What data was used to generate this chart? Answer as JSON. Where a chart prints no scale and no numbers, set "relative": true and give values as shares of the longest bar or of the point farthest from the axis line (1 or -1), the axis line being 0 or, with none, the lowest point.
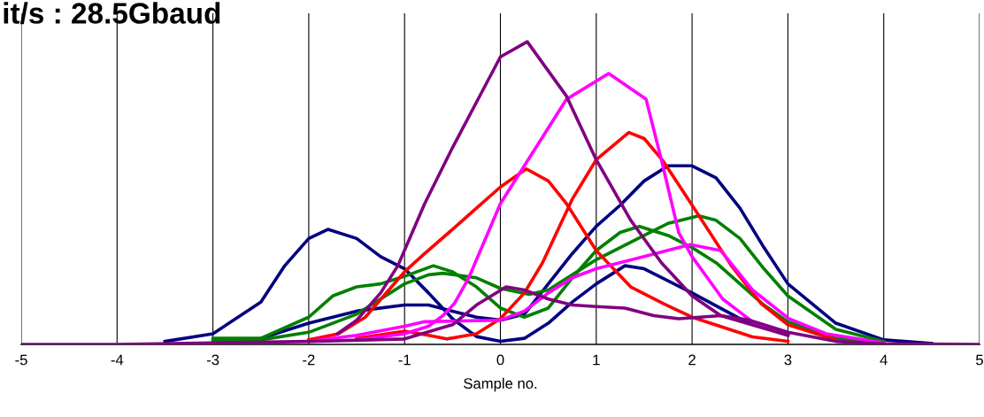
{
  "chart_data": {
    "type": "line",
    "title": "it/s : 28.5Gbaud",
    "xlabel": "Sample no.",
    "relative": true,
    "xlim": [
      -5,
      5
    ],
    "xticks": [
      -5,
      -4,
      -3,
      -2,
      -1,
      0,
      1,
      2,
      3,
      4,
      5
    ],
    "grid": "x",
    "marker": "none",
    "line_style": "solid",
    "series": [
      {
        "color": "#000080",
        "x": [
          -3.5,
          -3,
          -2.5,
          -2.25,
          -2,
          -1.8,
          -1.5,
          -1.25,
          -1,
          -0.75,
          -0.5,
          -0.25,
          0,
          0.25,
          0.5,
          0.75,
          1,
          1.3,
          1.5,
          2,
          2.5,
          3
        ],
        "values": [
          0.01,
          0.035,
          0.14,
          0.26,
          0.35,
          0.38,
          0.35,
          0.29,
          0.25,
          0.17,
          0.085,
          0.026,
          0.01,
          0.02,
          0.07,
          0.14,
          0.2,
          0.26,
          0.25,
          0.17,
          0.085,
          0.03
        ]
      },
      {
        "color": "#000080",
        "x": [
          -2.5,
          -2,
          -1.5,
          -1,
          -0.75,
          -0.5,
          -0.25,
          0,
          0.25,
          0.5,
          0.75,
          1,
          1.25,
          1.5,
          1.75,
          2,
          2.25,
          2.5,
          2.75,
          3,
          3.5,
          4,
          4.5
        ],
        "values": [
          0.02,
          0.07,
          0.11,
          0.13,
          0.13,
          0.11,
          0.09,
          0.08,
          0.1,
          0.2,
          0.3,
          0.39,
          0.46,
          0.54,
          0.59,
          0.59,
          0.55,
          0.45,
          0.32,
          0.2,
          0.07,
          0.015,
          0.003
        ]
      },
      {
        "color": "#008000",
        "x": [
          -3,
          -2.5,
          -2,
          -1.75,
          -1.5,
          -1.25,
          -1,
          -0.7,
          -0.5,
          -0.25,
          0,
          0.25,
          0.5,
          0.75,
          1,
          1.25,
          1.45,
          1.75,
          2,
          2.25,
          2.5,
          2.75,
          3,
          3.5,
          4
        ],
        "values": [
          0.02,
          0.02,
          0.09,
          0.16,
          0.19,
          0.2,
          0.225,
          0.26,
          0.24,
          0.19,
          0.12,
          0.09,
          0.12,
          0.22,
          0.31,
          0.37,
          0.39,
          0.36,
          0.32,
          0.27,
          0.2,
          0.13,
          0.075,
          0.02,
          0.005
        ]
      },
      {
        "color": "#008000",
        "x": [
          -3,
          -2.5,
          -2,
          -1.5,
          -1.25,
          -1,
          -0.75,
          -0.6,
          -0.25,
          0,
          0.3,
          0.5,
          0.75,
          1,
          1.25,
          1.5,
          1.75,
          2.07,
          2.25,
          2.5,
          2.75,
          3,
          3.5,
          4
        ],
        "values": [
          0.01,
          0.015,
          0.04,
          0.1,
          0.15,
          0.2,
          0.23,
          0.235,
          0.22,
          0.185,
          0.165,
          0.18,
          0.23,
          0.28,
          0.32,
          0.36,
          0.4,
          0.425,
          0.41,
          0.35,
          0.25,
          0.16,
          0.05,
          0.01
        ]
      },
      {
        "color": "#ff0000",
        "x": [
          -2,
          -1.69,
          -1.41,
          -1,
          -0.79,
          -0.5,
          -0.25,
          0,
          0.27,
          0.5,
          0.69,
          1,
          1.36,
          1.7,
          2,
          2.63,
          3
        ],
        "values": [
          0.015,
          0.035,
          0.09,
          0.24,
          0.3,
          0.38,
          0.45,
          0.52,
          0.58,
          0.54,
          0.465,
          0.31,
          0.19,
          0.135,
          0.09,
          0.025,
          0.01
        ]
      },
      {
        "color": "#ff0000",
        "x": [
          -1.5,
          -1,
          -0.75,
          -0.56,
          -0.25,
          0,
          0.25,
          0.44,
          0.75,
          1,
          1.34,
          1.5,
          1.7,
          2,
          2.41,
          2.72,
          3,
          3.5
        ],
        "values": [
          0.02,
          0.044,
          0.03,
          0.018,
          0.035,
          0.085,
          0.17,
          0.27,
          0.48,
          0.61,
          0.7,
          0.68,
          0.605,
          0.46,
          0.26,
          0.135,
          0.065,
          0.015
        ]
      },
      {
        "color": "#ff00ff",
        "x": [
          -1.5,
          -1,
          -0.75,
          -0.6,
          -0.48,
          -0.33,
          0,
          0.69,
          1.13,
          1.52,
          1.68,
          1.86,
          2,
          2.32,
          2.63,
          3
        ],
        "values": [
          0.015,
          0.035,
          0.06,
          0.095,
          0.135,
          0.22,
          0.465,
          0.81,
          0.895,
          0.81,
          0.61,
          0.37,
          0.29,
          0.15,
          0.075,
          0.03
        ]
      },
      {
        "color": "#ff00ff",
        "x": [
          -2,
          -1.5,
          -1,
          -0.79,
          0,
          0.25,
          0.5,
          0.75,
          1,
          1.5,
          1.98,
          2.3,
          2.63,
          3.01,
          3.4,
          4
        ],
        "values": [
          0.01,
          0.03,
          0.06,
          0.075,
          0.08,
          0.11,
          0.17,
          0.22,
          0.25,
          0.29,
          0.33,
          0.31,
          0.18,
          0.085,
          0.035,
          0.005
        ]
      },
      {
        "color": "#800080",
        "x": [
          -1.7,
          -1.5,
          -1.25,
          -1.07,
          -0.79,
          -0.5,
          -0.25,
          0,
          0.28,
          0.69,
          1,
          1.36,
          1.68,
          2,
          2.3,
          3
        ],
        "values": [
          0.035,
          0.08,
          0.17,
          0.26,
          0.465,
          0.65,
          0.8,
          0.95,
          1,
          0.82,
          0.61,
          0.41,
          0.27,
          0.16,
          0.095,
          0.03
        ]
      },
      {
        "color": "#800080",
        "x": [
          -5,
          -4,
          -2,
          -1,
          -0.5,
          -0.25,
          0.06,
          0.25,
          0.5,
          0.75,
          1,
          1.3,
          1.6,
          1.86,
          2.3,
          2.6,
          3,
          3.5,
          4,
          5
        ],
        "values": [
          0,
          0,
          0.01,
          0.018,
          0.065,
          0.13,
          0.19,
          0.18,
          0.15,
          0.13,
          0.125,
          0.12,
          0.095,
          0.085,
          0.095,
          0.08,
          0.04,
          0.01,
          0.002,
          0
        ]
      }
    ]
  }
}
